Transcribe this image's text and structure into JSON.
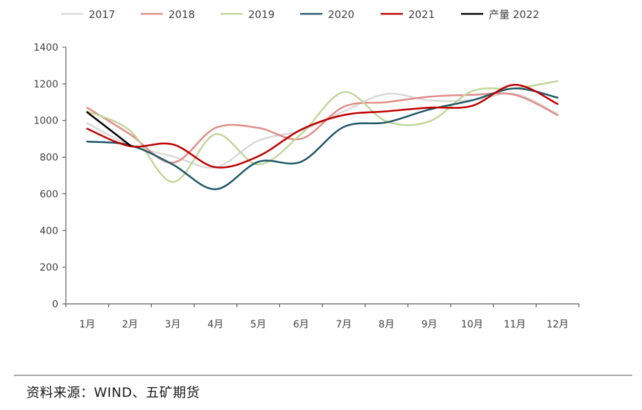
{
  "chart_data": {
    "type": "line",
    "categories": [
      "1月",
      "2月",
      "3月",
      "4月",
      "5月",
      "6月",
      "7月",
      "8月",
      "9月",
      "10月",
      "11月",
      "12月"
    ],
    "ylim": [
      0,
      1400
    ],
    "yticks": [
      0,
      200,
      400,
      600,
      800,
      1000,
      1200,
      1400
    ],
    "legend_position": "top",
    "grid": false,
    "smooth": true,
    "series": [
      {
        "name": "2017",
        "color": "#d9d9d9",
        "values": [
          985,
          865,
          805,
          745,
          890,
          945,
          1050,
          1145,
          1110,
          1110,
          1145,
          1035
        ]
      },
      {
        "name": "2018",
        "color": "#e08f8a",
        "values": [
          1070,
          925,
          770,
          960,
          960,
          900,
          1075,
          1100,
          1130,
          1140,
          1140,
          1030
        ]
      },
      {
        "name": "2019",
        "color": "#c3d69b",
        "values": [
          1050,
          945,
          665,
          925,
          760,
          925,
          1155,
          995,
          995,
          1160,
          1175,
          1215
        ]
      },
      {
        "name": "2020",
        "color": "#215968",
        "values": [
          885,
          865,
          760,
          625,
          775,
          775,
          965,
          990,
          1060,
          1110,
          1175,
          1125
        ]
      },
      {
        "name": "2021",
        "color": "#c00000",
        "values": [
          955,
          860,
          870,
          745,
          805,
          950,
          1030,
          1050,
          1070,
          1080,
          1195,
          1090
        ]
      },
      {
        "name": "产量 2022",
        "color": "#000000",
        "values": [
          1045,
          865,
          null,
          null,
          null,
          null,
          null,
          null,
          null,
          null,
          null,
          null
        ]
      }
    ]
  },
  "source": "资料来源：WIND、五矿期货"
}
